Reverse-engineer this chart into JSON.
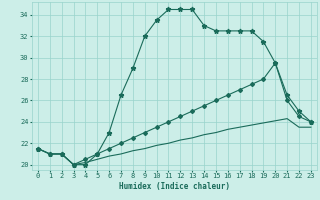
{
  "xlabel": "Humidex (Indice chaleur)",
  "bg_color": "#cceee8",
  "line_color": "#1a6b5a",
  "grid_color": "#99d4cc",
  "hours": [
    0,
    1,
    2,
    3,
    4,
    5,
    6,
    7,
    8,
    9,
    10,
    11,
    12,
    13,
    14,
    15,
    16,
    17,
    18,
    19,
    20,
    21,
    22,
    23
  ],
  "line_main": [
    21.5,
    21.0,
    21.0,
    20.0,
    20.0,
    21.0,
    23.0,
    26.5,
    29.0,
    32.0,
    33.5,
    34.5,
    34.5,
    34.5,
    33.0,
    32.5,
    32.5,
    32.5,
    32.5,
    31.5,
    29.5,
    26.5,
    25.0,
    24.0
  ],
  "line_mid": [
    21.5,
    21.0,
    21.0,
    20.0,
    20.5,
    21.0,
    21.5,
    22.0,
    22.5,
    23.0,
    23.5,
    24.0,
    24.5,
    25.0,
    25.5,
    26.0,
    26.5,
    27.0,
    27.5,
    28.0,
    29.5,
    26.0,
    24.5,
    24.0
  ],
  "line_low": [
    21.5,
    21.0,
    21.0,
    20.0,
    20.2,
    20.5,
    20.8,
    21.0,
    21.3,
    21.5,
    21.8,
    22.0,
    22.3,
    22.5,
    22.8,
    23.0,
    23.3,
    23.5,
    23.7,
    23.9,
    24.1,
    24.3,
    23.5,
    23.5
  ],
  "ylim": [
    19.5,
    35.2
  ],
  "xlim": [
    -0.5,
    23.5
  ],
  "yticks": [
    20,
    22,
    24,
    26,
    28,
    30,
    32,
    34
  ],
  "xticks": [
    0,
    1,
    2,
    3,
    4,
    5,
    6,
    7,
    8,
    9,
    10,
    11,
    12,
    13,
    14,
    15,
    16,
    17,
    18,
    19,
    20,
    21,
    22,
    23
  ]
}
